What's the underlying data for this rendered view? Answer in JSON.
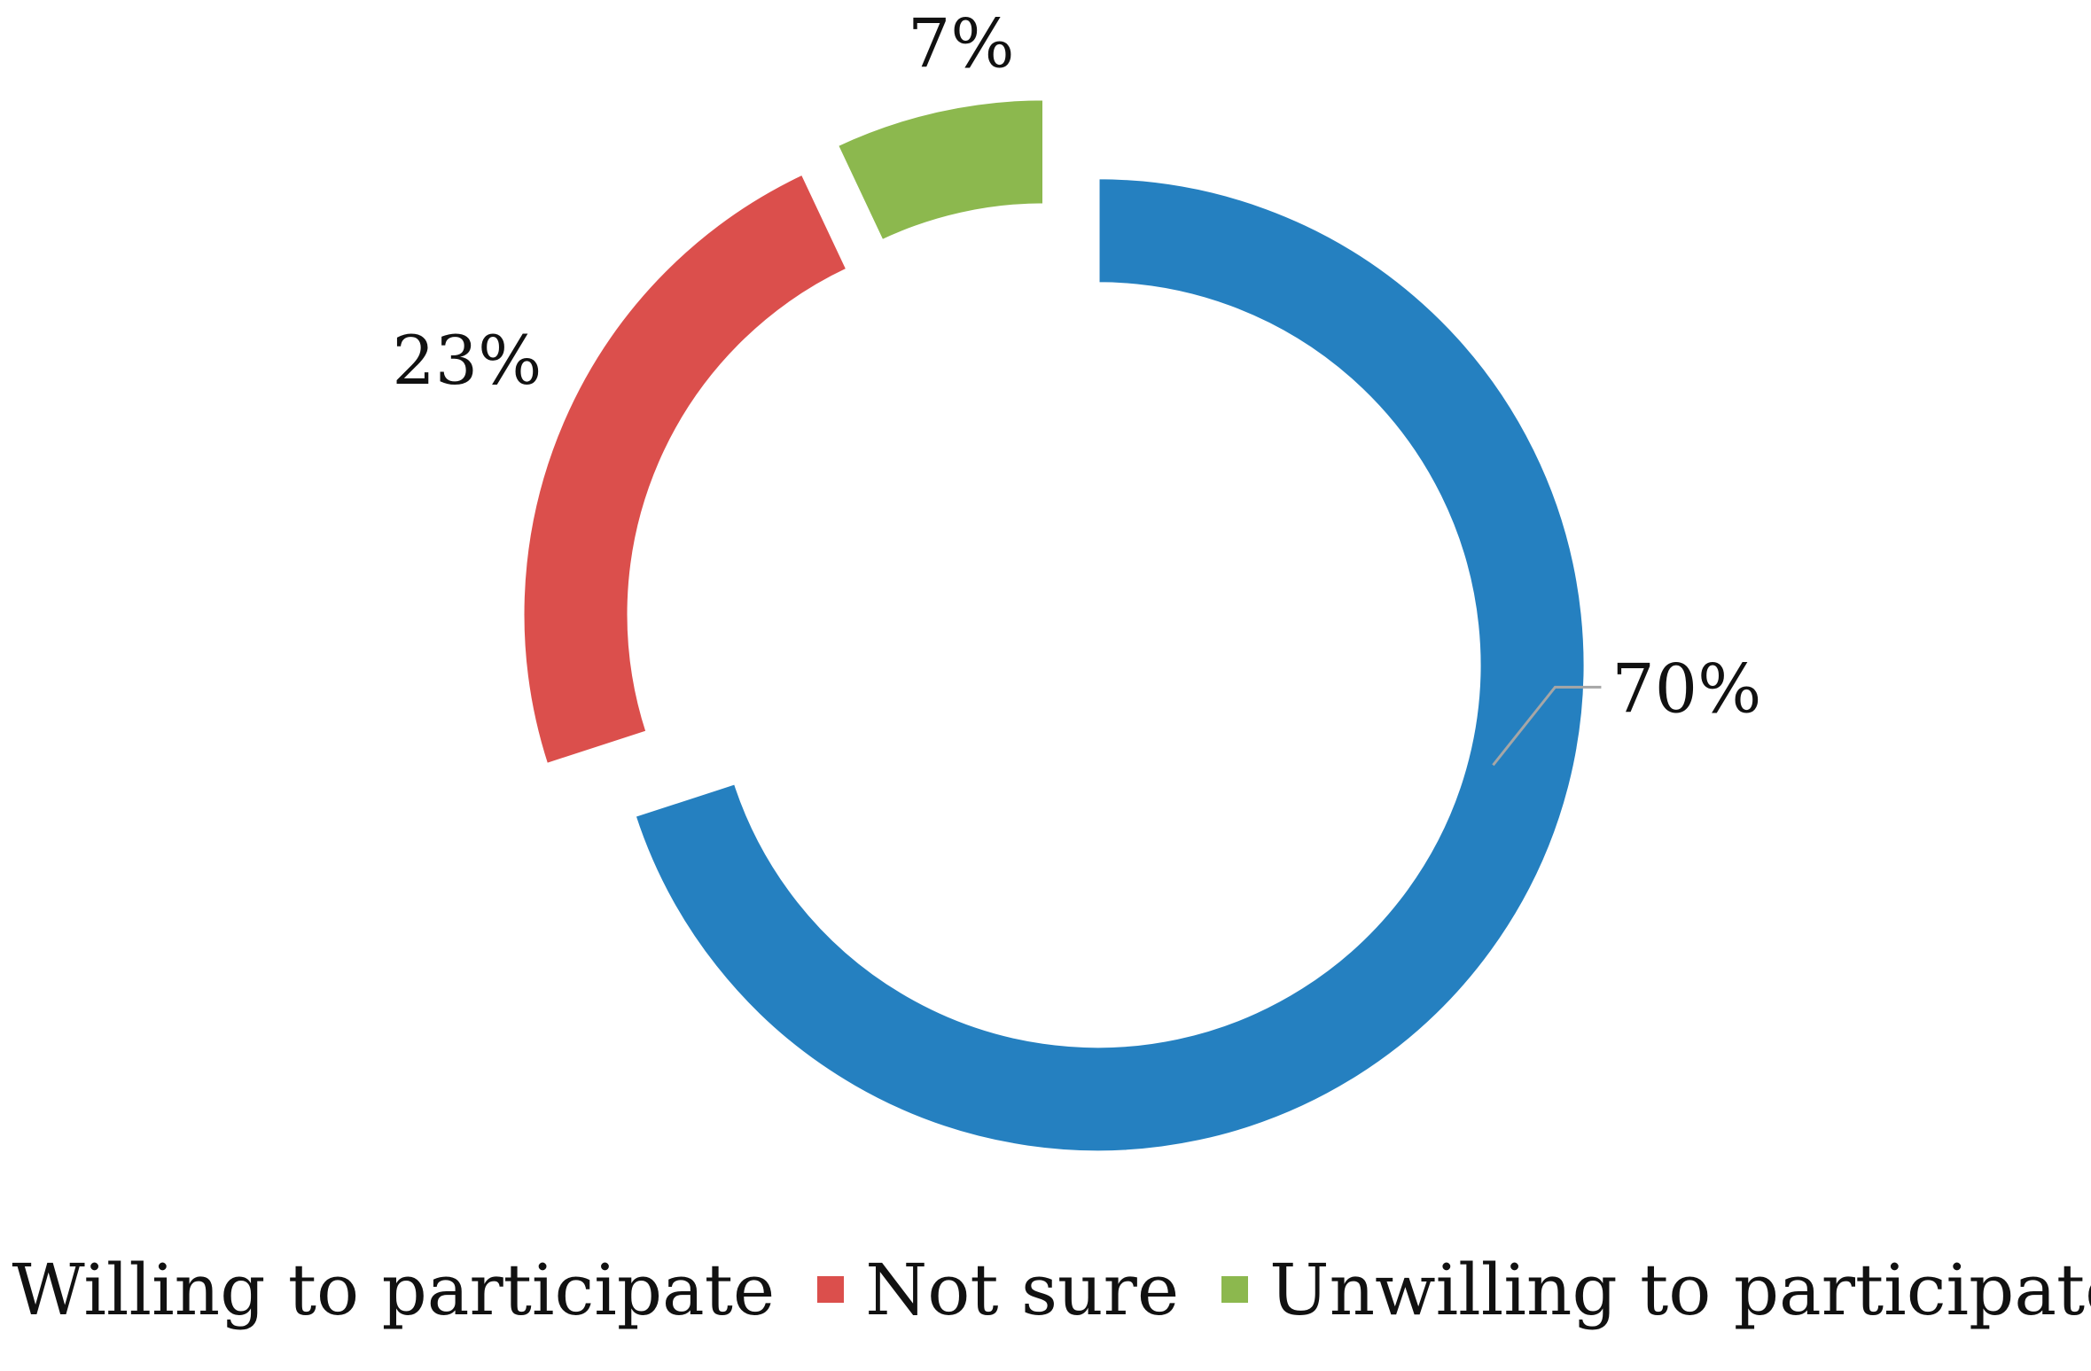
{
  "chart_data": {
    "type": "pie",
    "variant": "doughnut",
    "exploded": true,
    "start_angle_deg": 0,
    "direction": "clockwise",
    "legend_position": "bottom",
    "slices": [
      {
        "name": "Willing to participate",
        "value": 70,
        "label": "70%",
        "color": "#2580C0"
      },
      {
        "name": "Not sure",
        "value": 23,
        "label": "23%",
        "color": "#DB4F4C"
      },
      {
        "name": "Unwilling to participate",
        "value": 7,
        "label": "7%",
        "color": "#8CB84E"
      }
    ]
  }
}
